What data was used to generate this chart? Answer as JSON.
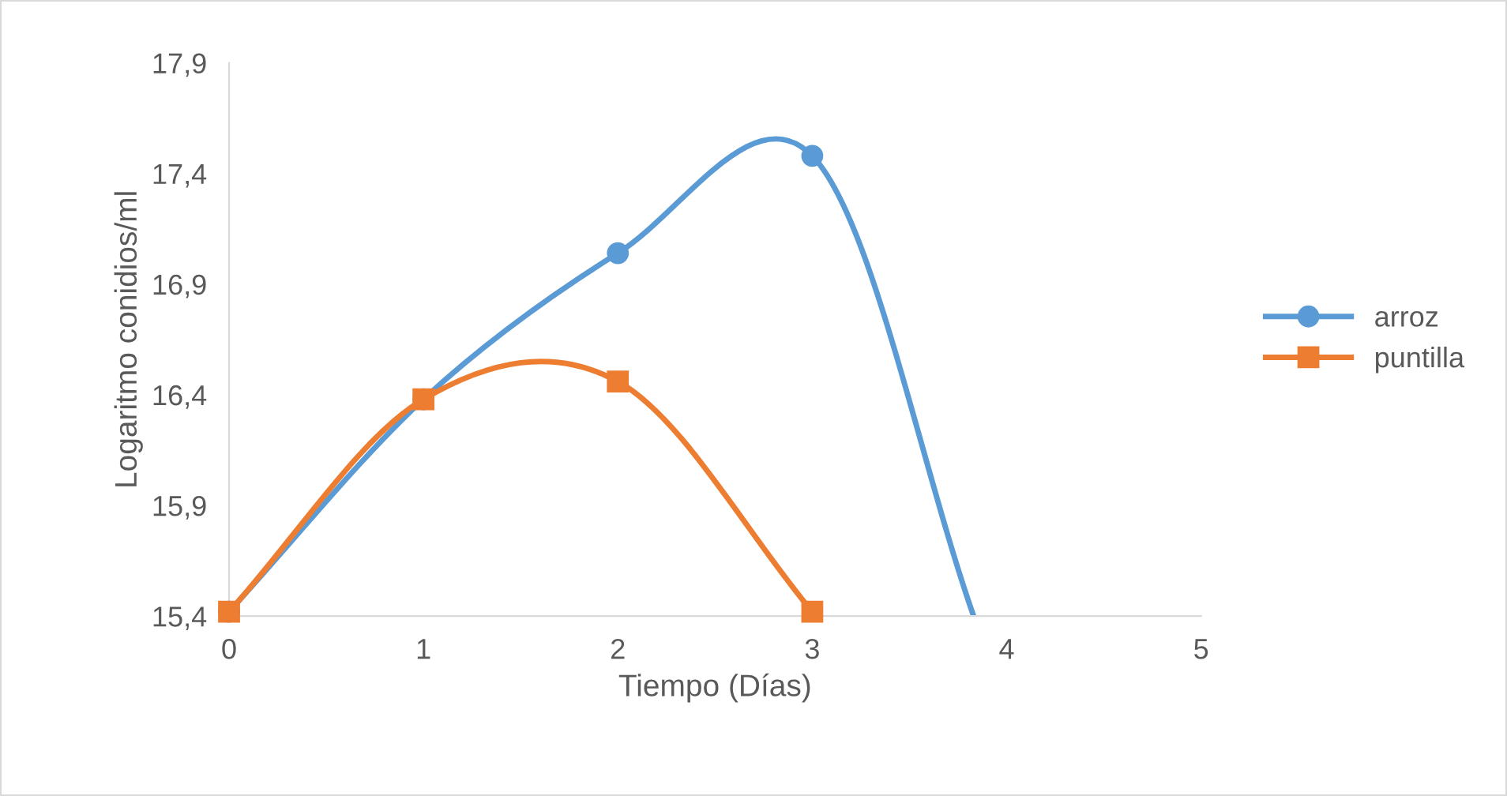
{
  "chart_data": {
    "type": "line",
    "xlabel": "Tiempo (Días)",
    "ylabel": "Logaritmo conidios/ml",
    "xlim": [
      0,
      5
    ],
    "xticks": [
      0,
      1,
      2,
      3,
      4,
      5
    ],
    "ylim": [
      15.4,
      17.9
    ],
    "yticks": [
      {
        "value": 15.4,
        "label": "15,4"
      },
      {
        "value": 15.9,
        "label": "15,9"
      },
      {
        "value": 16.4,
        "label": "16,4"
      },
      {
        "value": 16.9,
        "label": "16,9"
      },
      {
        "value": 17.4,
        "label": "17,4"
      },
      {
        "value": 17.9,
        "label": "17,9"
      }
    ],
    "grid": false,
    "legend": "right",
    "series": [
      {
        "name": "arroz",
        "color": "#5b9bd5",
        "marker": "circle",
        "x": [
          0,
          1,
          2,
          3,
          3.83
        ],
        "values": [
          15.42,
          16.38,
          17.04,
          17.48,
          15.4
        ]
      },
      {
        "name": "puntilla",
        "color": "#ed7d31",
        "marker": "square",
        "x": [
          0,
          1,
          2,
          3
        ],
        "values": [
          15.42,
          16.38,
          16.46,
          15.42
        ]
      }
    ]
  }
}
